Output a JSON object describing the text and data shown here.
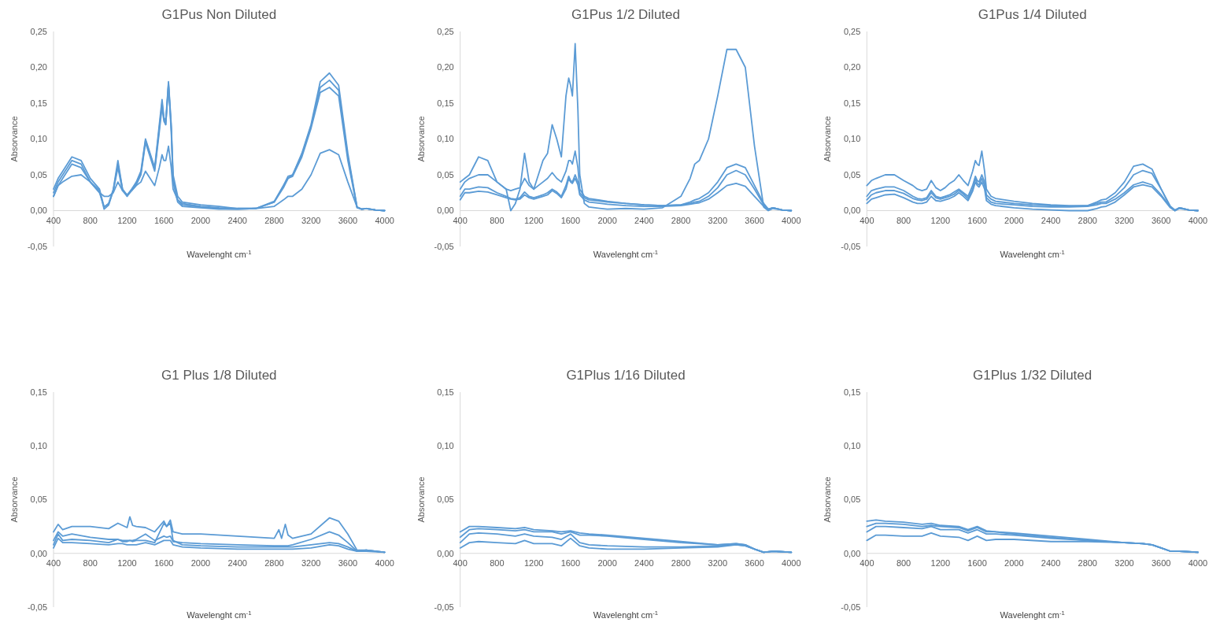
{
  "chart_data": [
    {
      "type": "line",
      "title": "G1Pus Non Diluted",
      "xlabel": "Wavelenght cm$^{-1}$",
      "ylabel": "Absorvance",
      "xlim": [
        400,
        4000
      ],
      "xticks": [
        400,
        800,
        1200,
        1600,
        2000,
        2400,
        2800,
        3200,
        3600,
        4000
      ],
      "ylim": [
        -0.05,
        0.25
      ],
      "yticks": [
        {
          "value": -0.05,
          "label": "-0,05"
        },
        {
          "value": 0,
          "label": "0,00"
        },
        {
          "value": 0.05,
          "label": "0,05"
        },
        {
          "value": 0.1,
          "label": "0,10"
        },
        {
          "value": 0.15,
          "label": "0,15"
        },
        {
          "value": 0.2,
          "label": "0,20"
        },
        {
          "value": 0.25,
          "label": "0,25"
        }
      ],
      "x": [
        400,
        450,
        500,
        600,
        700,
        800,
        900,
        950,
        1000,
        1050,
        1100,
        1150,
        1200,
        1250,
        1300,
        1350,
        1400,
        1450,
        1500,
        1550,
        1580,
        1600,
        1620,
        1650,
        1680,
        1700,
        1750,
        1800,
        2000,
        2200,
        2400,
        2600,
        2800,
        2900,
        2950,
        3000,
        3100,
        3200,
        3300,
        3400,
        3500,
        3600,
        3700,
        3750,
        3800,
        3900,
        4000
      ],
      "series": [
        {
          "color": "#5b9bd5",
          "values": [
            0.03,
            0.045,
            0.055,
            0.075,
            0.07,
            0.045,
            0.03,
            0.005,
            0.01,
            0.03,
            0.07,
            0.03,
            0.022,
            0.03,
            0.04,
            0.055,
            0.1,
            0.08,
            0.06,
            0.12,
            0.155,
            0.13,
            0.125,
            0.18,
            0.12,
            0.05,
            0.02,
            0.012,
            0.008,
            0.006,
            0.003,
            0.003,
            0.012,
            0.035,
            0.045,
            0.05,
            0.08,
            0.12,
            0.18,
            0.192,
            0.175,
            0.08,
            0.005,
            0.002,
            0.003,
            0.001,
            0.0
          ]
        },
        {
          "color": "#5b9bd5",
          "values": [
            0.025,
            0.04,
            0.05,
            0.07,
            0.065,
            0.04,
            0.028,
            0.002,
            0.008,
            0.028,
            0.065,
            0.03,
            0.02,
            0.03,
            0.038,
            0.052,
            0.098,
            0.078,
            0.058,
            0.115,
            0.15,
            0.128,
            0.12,
            0.178,
            0.115,
            0.045,
            0.015,
            0.008,
            0.005,
            0.003,
            0.002,
            0.003,
            0.013,
            0.035,
            0.048,
            0.05,
            0.078,
            0.118,
            0.172,
            0.182,
            0.168,
            0.075,
            0.005,
            0.002,
            0.003,
            0.001,
            0.0
          ]
        },
        {
          "color": "#5b9bd5",
          "values": [
            0.02,
            0.035,
            0.045,
            0.065,
            0.06,
            0.04,
            0.025,
            0.005,
            0.01,
            0.028,
            0.06,
            0.028,
            0.02,
            0.028,
            0.036,
            0.05,
            0.095,
            0.075,
            0.055,
            0.11,
            0.145,
            0.125,
            0.12,
            0.175,
            0.11,
            0.04,
            0.012,
            0.006,
            0.004,
            0.002,
            0.002,
            0.003,
            0.012,
            0.032,
            0.045,
            0.048,
            0.075,
            0.115,
            0.165,
            0.172,
            0.16,
            0.07,
            0.004,
            0.002,
            0.003,
            0.001,
            0.0
          ]
        },
        {
          "color": "#5b9bd5",
          "values": [
            0.02,
            0.035,
            0.04,
            0.048,
            0.05,
            0.04,
            0.025,
            0.02,
            0.02,
            0.025,
            0.04,
            0.028,
            0.022,
            0.028,
            0.035,
            0.04,
            0.055,
            0.045,
            0.035,
            0.06,
            0.078,
            0.07,
            0.07,
            0.09,
            0.06,
            0.03,
            0.015,
            0.01,
            0.006,
            0.004,
            0.003,
            0.003,
            0.006,
            0.015,
            0.02,
            0.02,
            0.03,
            0.05,
            0.08,
            0.085,
            0.078,
            0.04,
            0.005,
            0.002,
            0.003,
            0.001,
            0.0
          ]
        }
      ]
    },
    {
      "type": "line",
      "title": "G1Pus 1/2 Diluted",
      "xlabel": "Wavelenght cm$^{-1}$",
      "ylabel": "Absorvance",
      "xlim": [
        400,
        4000
      ],
      "xticks": [
        400,
        800,
        1200,
        1600,
        2000,
        2400,
        2800,
        3200,
        3600,
        4000
      ],
      "ylim": [
        -0.05,
        0.25
      ],
      "yticks": [
        {
          "value": -0.05,
          "label": "-0,05"
        },
        {
          "value": 0,
          "label": "0,00"
        },
        {
          "value": 0.05,
          "label": "0,05"
        },
        {
          "value": 0.1,
          "label": "0,10"
        },
        {
          "value": 0.15,
          "label": "0,15"
        },
        {
          "value": 0.2,
          "label": "0,20"
        },
        {
          "value": 0.25,
          "label": "0,25"
        }
      ],
      "x": [
        400,
        450,
        500,
        600,
        700,
        800,
        900,
        950,
        1000,
        1050,
        1100,
        1150,
        1200,
        1250,
        1300,
        1350,
        1400,
        1450,
        1500,
        1550,
        1580,
        1600,
        1620,
        1650,
        1680,
        1700,
        1750,
        1800,
        2000,
        2200,
        2400,
        2600,
        2800,
        2900,
        2950,
        3000,
        3100,
        3200,
        3300,
        3400,
        3500,
        3600,
        3700,
        3750,
        3800,
        3900,
        4000
      ],
      "series": [
        {
          "color": "#5b9bd5",
          "values": [
            0.04,
            0.045,
            0.05,
            0.075,
            0.07,
            0.04,
            0.03,
            0.0,
            0.01,
            0.03,
            0.08,
            0.04,
            0.03,
            0.05,
            0.07,
            0.08,
            0.12,
            0.1,
            0.075,
            0.16,
            0.185,
            0.175,
            0.16,
            0.233,
            0.14,
            0.05,
            0.01,
            0.005,
            0.002,
            0.003,
            0.002,
            0.004,
            0.02,
            0.045,
            0.065,
            0.07,
            0.1,
            0.16,
            0.225,
            0.225,
            0.2,
            0.09,
            0.005,
            0.0,
            0.003,
            0.001,
            0.0
          ]
        },
        {
          "color": "#5b9bd5",
          "values": [
            0.03,
            0.04,
            0.045,
            0.05,
            0.05,
            0.04,
            0.03,
            0.028,
            0.03,
            0.032,
            0.045,
            0.035,
            0.03,
            0.035,
            0.04,
            0.045,
            0.053,
            0.045,
            0.04,
            0.055,
            0.07,
            0.07,
            0.065,
            0.083,
            0.06,
            0.03,
            0.02,
            0.017,
            0.013,
            0.01,
            0.008,
            0.007,
            0.008,
            0.012,
            0.015,
            0.017,
            0.025,
            0.04,
            0.06,
            0.065,
            0.06,
            0.035,
            0.01,
            0.002,
            0.004,
            0.001,
            0.0
          ]
        },
        {
          "color": "#5b9bd5",
          "values": [
            0.02,
            0.03,
            0.03,
            0.033,
            0.032,
            0.025,
            0.02,
            0.017,
            0.016,
            0.018,
            0.026,
            0.02,
            0.018,
            0.02,
            0.022,
            0.025,
            0.03,
            0.026,
            0.02,
            0.035,
            0.048,
            0.042,
            0.04,
            0.05,
            0.04,
            0.025,
            0.018,
            0.015,
            0.012,
            0.01,
            0.008,
            0.007,
            0.008,
            0.01,
            0.012,
            0.013,
            0.02,
            0.032,
            0.05,
            0.056,
            0.05,
            0.03,
            0.008,
            0.002,
            0.004,
            0.001,
            0.0
          ]
        },
        {
          "color": "#5b9bd5",
          "values": [
            0.015,
            0.025,
            0.025,
            0.027,
            0.026,
            0.022,
            0.018,
            0.016,
            0.015,
            0.016,
            0.022,
            0.018,
            0.016,
            0.018,
            0.02,
            0.022,
            0.028,
            0.024,
            0.018,
            0.03,
            0.045,
            0.04,
            0.038,
            0.045,
            0.036,
            0.022,
            0.015,
            0.012,
            0.009,
            0.007,
            0.006,
            0.006,
            0.007,
            0.009,
            0.01,
            0.011,
            0.016,
            0.025,
            0.035,
            0.038,
            0.034,
            0.02,
            0.006,
            0.001,
            0.004,
            0.001,
            0.0
          ]
        }
      ]
    },
    {
      "type": "line",
      "title": "G1Pus 1/4 Diluted",
      "xlabel": "Wavelenght cm$^{-1}$",
      "ylabel": "Absorvance",
      "xlim": [
        400,
        4000
      ],
      "xticks": [
        400,
        800,
        1200,
        1600,
        2000,
        2400,
        2800,
        3200,
        3600,
        4000
      ],
      "ylim": [
        -0.05,
        0.25
      ],
      "yticks": [
        {
          "value": -0.05,
          "label": "-0,05"
        },
        {
          "value": 0,
          "label": "0,00"
        },
        {
          "value": 0.05,
          "label": "0,05"
        },
        {
          "value": 0.1,
          "label": "0,10"
        },
        {
          "value": 0.15,
          "label": "0,15"
        },
        {
          "value": 0.2,
          "label": "0,20"
        },
        {
          "value": 0.25,
          "label": "0,25"
        }
      ],
      "x": [
        400,
        450,
        500,
        600,
        700,
        800,
        900,
        950,
        1000,
        1050,
        1100,
        1150,
        1200,
        1250,
        1300,
        1350,
        1400,
        1450,
        1500,
        1550,
        1580,
        1600,
        1620,
        1650,
        1680,
        1700,
        1750,
        1800,
        2000,
        2200,
        2400,
        2600,
        2800,
        2900,
        2950,
        3000,
        3100,
        3200,
        3300,
        3400,
        3500,
        3600,
        3700,
        3750,
        3800,
        3900,
        4000
      ],
      "series": [
        {
          "color": "#5b9bd5",
          "values": [
            0.035,
            0.042,
            0.045,
            0.05,
            0.05,
            0.042,
            0.035,
            0.03,
            0.028,
            0.03,
            0.042,
            0.032,
            0.028,
            0.032,
            0.038,
            0.042,
            0.05,
            0.042,
            0.035,
            0.055,
            0.07,
            0.065,
            0.063,
            0.083,
            0.055,
            0.03,
            0.02,
            0.017,
            0.013,
            0.01,
            0.008,
            0.007,
            0.007,
            0.012,
            0.015,
            0.016,
            0.025,
            0.04,
            0.062,
            0.065,
            0.058,
            0.03,
            0.005,
            0.0,
            0.004,
            0.001,
            0.0
          ]
        },
        {
          "color": "#5b9bd5",
          "values": [
            0.02,
            0.028,
            0.03,
            0.033,
            0.033,
            0.028,
            0.02,
            0.017,
            0.016,
            0.018,
            0.028,
            0.02,
            0.018,
            0.02,
            0.022,
            0.026,
            0.03,
            0.025,
            0.02,
            0.035,
            0.048,
            0.042,
            0.04,
            0.05,
            0.04,
            0.022,
            0.016,
            0.013,
            0.01,
            0.008,
            0.007,
            0.006,
            0.007,
            0.01,
            0.012,
            0.012,
            0.02,
            0.032,
            0.05,
            0.056,
            0.052,
            0.03,
            0.006,
            0.001,
            0.004,
            0.001,
            0.0
          ]
        },
        {
          "color": "#5b9bd5",
          "values": [
            0.015,
            0.022,
            0.025,
            0.028,
            0.028,
            0.024,
            0.017,
            0.015,
            0.014,
            0.016,
            0.025,
            0.018,
            0.016,
            0.018,
            0.02,
            0.023,
            0.028,
            0.023,
            0.017,
            0.03,
            0.045,
            0.038,
            0.036,
            0.045,
            0.035,
            0.018,
            0.012,
            0.01,
            0.008,
            0.006,
            0.005,
            0.005,
            0.006,
            0.008,
            0.01,
            0.01,
            0.016,
            0.025,
            0.036,
            0.04,
            0.036,
            0.022,
            0.005,
            0.0,
            0.004,
            0.001,
            0.0
          ]
        },
        {
          "color": "#5b9bd5",
          "values": [
            0.01,
            0.016,
            0.018,
            0.022,
            0.023,
            0.018,
            0.012,
            0.01,
            0.01,
            0.012,
            0.02,
            0.014,
            0.013,
            0.015,
            0.017,
            0.02,
            0.025,
            0.02,
            0.014,
            0.027,
            0.04,
            0.035,
            0.033,
            0.04,
            0.03,
            0.014,
            0.009,
            0.007,
            0.004,
            0.002,
            0.001,
            0.0,
            0.0,
            0.003,
            0.005,
            0.006,
            0.012,
            0.022,
            0.033,
            0.036,
            0.033,
            0.02,
            0.004,
            0.0,
            0.003,
            0.001,
            0.0
          ]
        }
      ]
    },
    {
      "type": "line",
      "title": "G1 Plus 1/8 Diluted",
      "xlabel": "Wavelenght cm$^{-1}$",
      "ylabel": "Absorvance",
      "xlim": [
        400,
        4000
      ],
      "xticks": [
        400,
        800,
        1200,
        1600,
        2000,
        2400,
        2800,
        3200,
        3600,
        4000
      ],
      "ylim": [
        -0.05,
        0.15
      ],
      "yticks": [
        {
          "value": -0.05,
          "label": "-0,05"
        },
        {
          "value": 0,
          "label": "0,00"
        },
        {
          "value": 0.05,
          "label": "0,05"
        },
        {
          "value": 0.1,
          "label": "0,10"
        },
        {
          "value": 0.15,
          "label": "0,15"
        }
      ],
      "x": [
        400,
        450,
        500,
        600,
        800,
        1000,
        1100,
        1150,
        1200,
        1230,
        1260,
        1300,
        1400,
        1500,
        1600,
        1630,
        1670,
        1700,
        1800,
        2000,
        2400,
        2800,
        2850,
        2880,
        2920,
        2950,
        3000,
        3200,
        3400,
        3500,
        3600,
        3700,
        3800,
        4000
      ],
      "series": [
        {
          "color": "#5b9bd5",
          "values": [
            0.02,
            0.027,
            0.022,
            0.025,
            0.025,
            0.023,
            0.028,
            0.026,
            0.024,
            0.034,
            0.026,
            0.025,
            0.024,
            0.02,
            0.03,
            0.025,
            0.031,
            0.02,
            0.018,
            0.018,
            0.016,
            0.014,
            0.022,
            0.014,
            0.027,
            0.017,
            0.014,
            0.018,
            0.033,
            0.03,
            0.018,
            0.003,
            0.003,
            0.001
          ]
        },
        {
          "color": "#5b9bd5",
          "values": [
            0.012,
            0.02,
            0.016,
            0.018,
            0.015,
            0.013,
            0.013,
            0.012,
            0.012,
            0.012,
            0.012,
            0.013,
            0.018,
            0.012,
            0.016,
            0.015,
            0.016,
            0.011,
            0.01,
            0.009,
            0.008,
            0.007,
            0.007,
            0.007,
            0.007,
            0.007,
            0.008,
            0.013,
            0.02,
            0.017,
            0.01,
            0.002,
            0.003,
            0.001
          ]
        },
        {
          "color": "#5b9bd5",
          "values": [
            0.008,
            0.018,
            0.012,
            0.013,
            0.012,
            0.01,
            0.013,
            0.011,
            0.011,
            0.012,
            0.011,
            0.012,
            0.012,
            0.01,
            0.028,
            0.025,
            0.028,
            0.012,
            0.008,
            0.007,
            0.006,
            0.006,
            0.006,
            0.006,
            0.006,
            0.006,
            0.006,
            0.008,
            0.01,
            0.009,
            0.006,
            0.002,
            0.003,
            0.001
          ]
        },
        {
          "color": "#5b9bd5",
          "values": [
            0.005,
            0.014,
            0.01,
            0.01,
            0.009,
            0.008,
            0.009,
            0.009,
            0.008,
            0.008,
            0.008,
            0.008,
            0.01,
            0.008,
            0.012,
            0.012,
            0.012,
            0.008,
            0.006,
            0.005,
            0.004,
            0.004,
            0.004,
            0.004,
            0.004,
            0.004,
            0.004,
            0.005,
            0.008,
            0.007,
            0.004,
            0.002,
            0.002,
            0.001
          ]
        }
      ]
    },
    {
      "type": "line",
      "title": "G1Plus 1/16 Diluted",
      "xlabel": "Wavelenght cm$^{-1}$",
      "ylabel": "Absorvance",
      "xlim": [
        400,
        4000
      ],
      "xticks": [
        400,
        800,
        1200,
        1600,
        2000,
        2400,
        2800,
        3200,
        3600,
        4000
      ],
      "ylim": [
        -0.05,
        0.15
      ],
      "yticks": [
        {
          "value": -0.05,
          "label": "-0,05"
        },
        {
          "value": 0,
          "label": "0,00"
        },
        {
          "value": 0.05,
          "label": "0,05"
        },
        {
          "value": 0.1,
          "label": "0,10"
        },
        {
          "value": 0.15,
          "label": "0,15"
        }
      ],
      "x": [
        400,
        500,
        600,
        800,
        1000,
        1100,
        1200,
        1400,
        1500,
        1600,
        1700,
        1800,
        2000,
        2400,
        2800,
        3200,
        3400,
        3500,
        3600,
        3700,
        3800,
        4000
      ],
      "series": [
        {
          "color": "#5b9bd5",
          "values": [
            0.02,
            0.025,
            0.025,
            0.024,
            0.023,
            0.024,
            0.022,
            0.021,
            0.02,
            0.021,
            0.019,
            0.018,
            0.017,
            0.014,
            0.011,
            0.008,
            0.009,
            0.008,
            0.004,
            0.001,
            0.002,
            0.001
          ]
        },
        {
          "color": "#5b9bd5",
          "values": [
            0.015,
            0.022,
            0.023,
            0.022,
            0.021,
            0.022,
            0.02,
            0.02,
            0.018,
            0.02,
            0.017,
            0.017,
            0.016,
            0.013,
            0.01,
            0.008,
            0.009,
            0.008,
            0.004,
            0.001,
            0.002,
            0.001
          ]
        },
        {
          "color": "#5b9bd5",
          "values": [
            0.01,
            0.018,
            0.019,
            0.018,
            0.016,
            0.018,
            0.016,
            0.015,
            0.013,
            0.018,
            0.01,
            0.008,
            0.007,
            0.006,
            0.006,
            0.007,
            0.008,
            0.007,
            0.004,
            0.001,
            0.002,
            0.001
          ]
        },
        {
          "color": "#5b9bd5",
          "values": [
            0.005,
            0.01,
            0.011,
            0.01,
            0.009,
            0.012,
            0.009,
            0.009,
            0.007,
            0.014,
            0.007,
            0.005,
            0.004,
            0.004,
            0.005,
            0.006,
            0.008,
            0.007,
            0.004,
            0.001,
            0.002,
            0.001
          ]
        }
      ]
    },
    {
      "type": "line",
      "title": "G1Plus 1/32 Diluted",
      "xlabel": "Wavelenght cm$^{-1}$",
      "ylabel": "Absorvance",
      "xlim": [
        400,
        4000
      ],
      "xticks": [
        400,
        800,
        1200,
        1600,
        2000,
        2400,
        2800,
        3200,
        3600,
        4000
      ],
      "ylim": [
        -0.05,
        0.15
      ],
      "yticks": [
        {
          "value": -0.05,
          "label": "-0,05"
        },
        {
          "value": 0,
          "label": "0,00"
        },
        {
          "value": 0.05,
          "label": "0,05"
        },
        {
          "value": 0.1,
          "label": "0,10"
        },
        {
          "value": 0.15,
          "label": "0,15"
        }
      ],
      "x": [
        400,
        500,
        600,
        800,
        1000,
        1100,
        1200,
        1400,
        1500,
        1600,
        1700,
        1800,
        2000,
        2400,
        2800,
        3200,
        3400,
        3500,
        3600,
        3700,
        3800,
        4000
      ],
      "series": [
        {
          "color": "#5b9bd5",
          "values": [
            0.03,
            0.031,
            0.03,
            0.029,
            0.027,
            0.028,
            0.026,
            0.025,
            0.022,
            0.025,
            0.021,
            0.02,
            0.019,
            0.016,
            0.013,
            0.01,
            0.009,
            0.008,
            0.005,
            0.002,
            0.002,
            0.001
          ]
        },
        {
          "color": "#5b9bd5",
          "values": [
            0.025,
            0.028,
            0.028,
            0.027,
            0.025,
            0.026,
            0.025,
            0.024,
            0.021,
            0.024,
            0.02,
            0.02,
            0.018,
            0.015,
            0.012,
            0.01,
            0.009,
            0.008,
            0.005,
            0.002,
            0.002,
            0.001
          ]
        },
        {
          "color": "#5b9bd5",
          "values": [
            0.02,
            0.025,
            0.025,
            0.024,
            0.023,
            0.025,
            0.022,
            0.022,
            0.019,
            0.022,
            0.018,
            0.018,
            0.017,
            0.014,
            0.012,
            0.01,
            0.009,
            0.008,
            0.005,
            0.002,
            0.002,
            0.001
          ]
        },
        {
          "color": "#5b9bd5",
          "values": [
            0.012,
            0.017,
            0.017,
            0.016,
            0.016,
            0.019,
            0.016,
            0.015,
            0.012,
            0.016,
            0.012,
            0.013,
            0.013,
            0.011,
            0.011,
            0.01,
            0.009,
            0.008,
            0.005,
            0.002,
            0.002,
            0.001
          ]
        }
      ]
    }
  ]
}
